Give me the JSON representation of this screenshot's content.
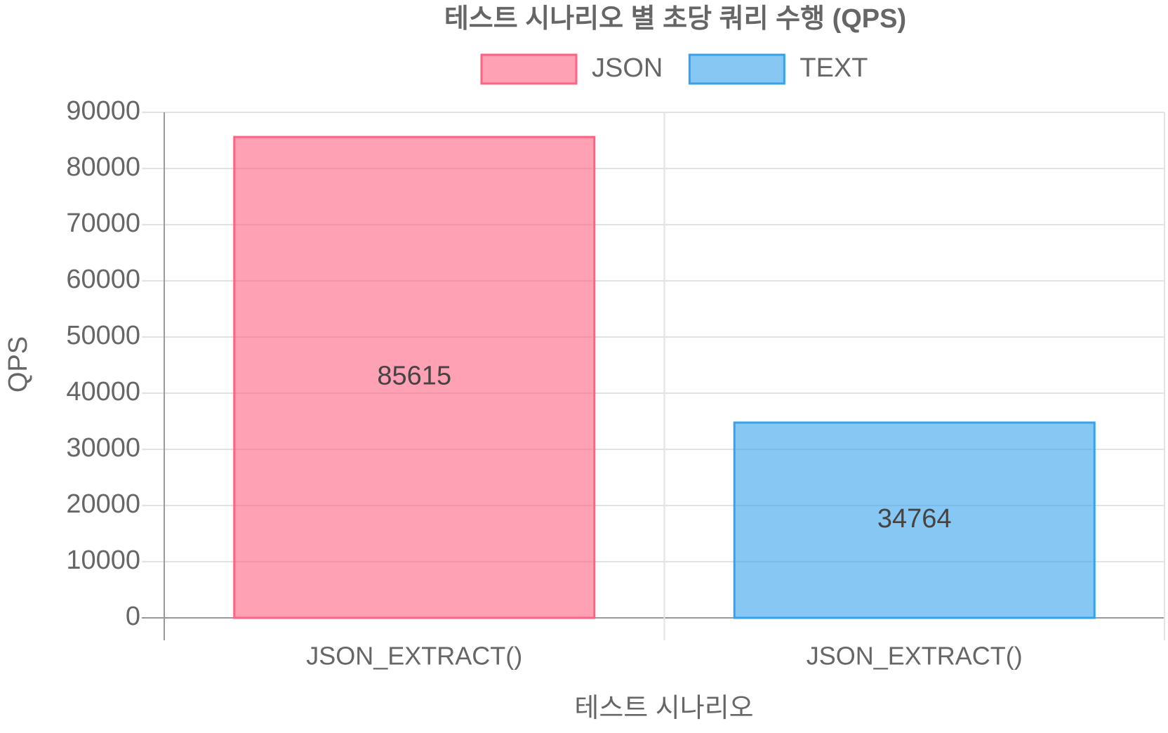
{
  "chart_data": {
    "type": "bar",
    "title": "테스트 시나리오 별 초당 쿼리 수행 (QPS)",
    "x_label": "테스트 시나리오",
    "y_label": "QPS",
    "categories": [
      "JSON_EXTRACT()",
      "JSON_EXTRACT()"
    ],
    "series": [
      {
        "name": "JSON",
        "color": "#ff6384",
        "values": [
          85615,
          null
        ]
      },
      {
        "name": "TEXT",
        "color": "#36a2eb",
        "values": [
          null,
          34764
        ]
      }
    ],
    "ylim": [
      0,
      90000
    ],
    "yticks": [
      0,
      10000,
      20000,
      30000,
      40000,
      50000,
      60000,
      70000,
      80000,
      90000
    ],
    "grid": true,
    "legend": "top"
  }
}
